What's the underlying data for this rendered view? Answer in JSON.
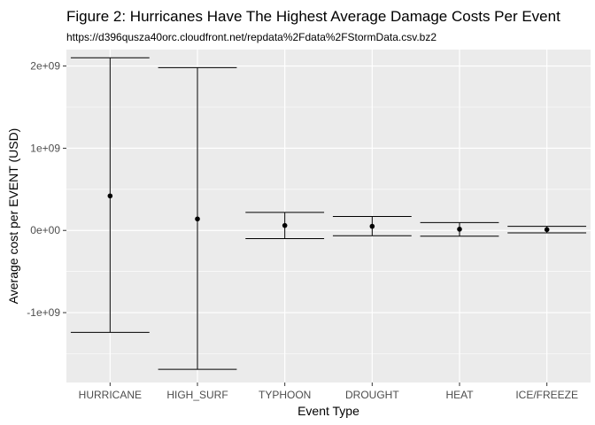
{
  "chart_data": {
    "type": "scatter",
    "title": "Figure 2: Hurricanes Have The Highest Average Damage Costs Per Event",
    "subtitle": "https://d396qusza40orc.cloudfront.net/repdata%2Fdata%2FStormData.csv.bz2",
    "xlabel": "Event Type",
    "ylabel": "Average cost per EVENT (USD)",
    "ylim": [
      -1850000000.0,
      2200000000.0
    ],
    "yticks": [
      -1000000000.0,
      0,
      1000000000.0,
      2000000000.0
    ],
    "ytick_labels": [
      "-1e+09",
      "0e+00",
      "1e+09",
      "2e+09"
    ],
    "grid": true,
    "categories": [
      "HURRICANE",
      "HIGH_SURF",
      "TYPHOON",
      "DROUGHT",
      "HEAT",
      "ICE/FREEZE"
    ],
    "series": [
      {
        "values": [
          420000000.0,
          140000000.0,
          60000000.0,
          50000000.0,
          15000000.0,
          10000000.0
        ],
        "error_low": [
          -1240000000.0,
          -1690000000.0,
          -100000000.0,
          -65000000.0,
          -70000000.0,
          -30000000.0
        ],
        "error_high": [
          2100000000.0,
          1980000000.0,
          220000000.0,
          170000000.0,
          95000000.0,
          50000000.0
        ]
      }
    ]
  }
}
